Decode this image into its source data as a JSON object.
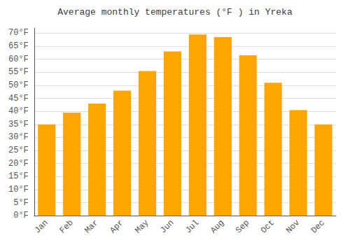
{
  "chart_data": {
    "type": "bar",
    "title": "Average monthly temperatures (°F ) in Yreka",
    "categories": [
      "Jan",
      "Feb",
      "Mar",
      "Apr",
      "May",
      "Jun",
      "Jul",
      "Aug",
      "Sep",
      "Oct",
      "Nov",
      "Dec"
    ],
    "values": [
      35,
      39.5,
      43,
      48,
      55.5,
      63,
      69.5,
      68.5,
      61.5,
      51,
      40.5,
      35
    ],
    "color": "#FFA500",
    "ylim": [
      0,
      72
    ],
    "yticks": [
      {
        "value": 0,
        "label": "0°F"
      },
      {
        "value": 5,
        "label": "5°F"
      },
      {
        "value": 10,
        "label": "10°F"
      },
      {
        "value": 15,
        "label": "15°F"
      },
      {
        "value": 20,
        "label": "20°F"
      },
      {
        "value": 25,
        "label": "25°F"
      },
      {
        "value": 30,
        "label": "30°F"
      },
      {
        "value": 35,
        "label": "35°F"
      },
      {
        "value": 40,
        "label": "40°F"
      },
      {
        "value": 45,
        "label": "45°F"
      },
      {
        "value": 50,
        "label": "50°F"
      },
      {
        "value": 55,
        "label": "55°F"
      },
      {
        "value": 60,
        "label": "60°F"
      },
      {
        "value": 65,
        "label": "65°F"
      },
      {
        "value": 70,
        "label": "70°F"
      }
    ],
    "grid": true
  }
}
